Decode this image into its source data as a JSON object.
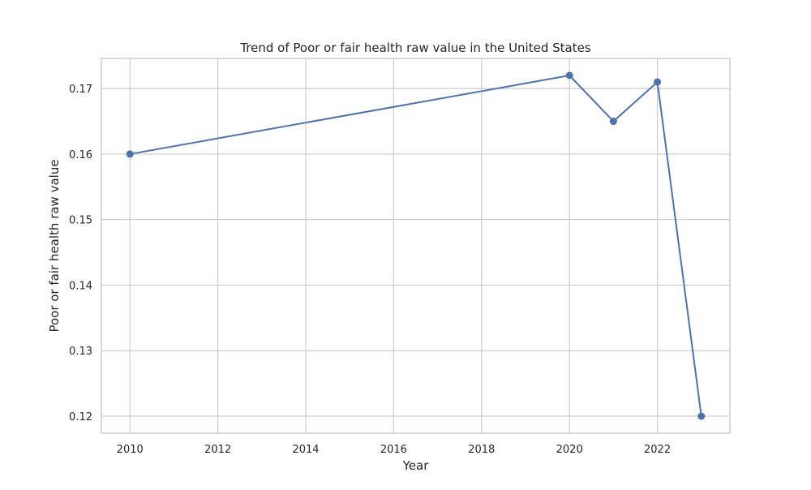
{
  "chart_data": {
    "type": "line",
    "title": "Trend of Poor or fair health raw value in the United States",
    "xlabel": "Year",
    "ylabel": "Poor or fair health raw value",
    "x": [
      2010,
      2020,
      2021,
      2022,
      2023
    ],
    "series": [
      {
        "values": [
          0.16,
          0.172,
          0.165,
          0.171,
          0.12
        ]
      }
    ],
    "xlim": [
      2009.35,
      2023.65
    ],
    "ylim": [
      0.1174,
      0.1746
    ],
    "xticks": [
      2010,
      2012,
      2014,
      2016,
      2018,
      2020,
      2022
    ],
    "yticks": [
      0.12,
      0.13,
      0.14,
      0.15,
      0.16,
      0.17
    ],
    "ytick_labels": [
      "0.12",
      "0.13",
      "0.14",
      "0.15",
      "0.16",
      "0.17"
    ],
    "grid": true,
    "marker": "circle",
    "colors": {
      "line": "#4c72b0",
      "grid": "#cccccc",
      "frame": "#cccccc",
      "text": "#262626"
    }
  }
}
